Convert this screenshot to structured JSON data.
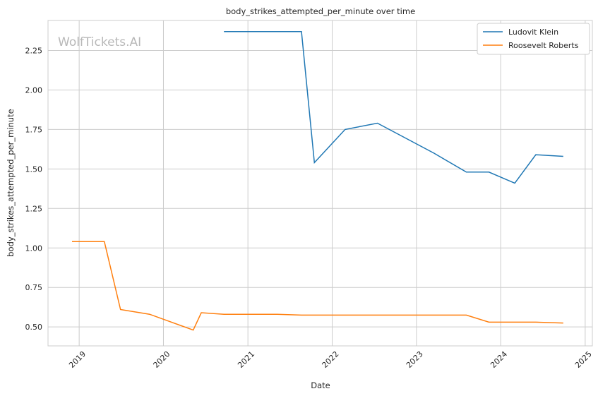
{
  "chart_data": {
    "type": "line",
    "title": "body_strikes_attempted_per_minute over time",
    "xlabel": "Date",
    "ylabel": "body_strikes_attempted_per_minute",
    "watermark": "WolfTickets.AI",
    "x_ticks": [
      "2019",
      "2020",
      "2021",
      "2022",
      "2023",
      "2024",
      "2025"
    ],
    "y_ticks": [
      "0.50",
      "0.75",
      "1.00",
      "1.25",
      "1.50",
      "1.75",
      "2.00",
      "2.25"
    ],
    "xlim": [
      "2018-08-19",
      "2025-02-01"
    ],
    "ylim": [
      0.38,
      2.44
    ],
    "grid": true,
    "legend_position": "top-right",
    "series": [
      {
        "name": "Ludovit Klein",
        "color": "#1f77b4",
        "points": [
          {
            "x": "2020-09-19",
            "y": 2.37
          },
          {
            "x": "2021-08-21",
            "y": 2.37
          },
          {
            "x": "2021-10-16",
            "y": 1.54
          },
          {
            "x": "2022-02-26",
            "y": 1.75
          },
          {
            "x": "2022-07-16",
            "y": 1.79
          },
          {
            "x": "2023-03-18",
            "y": 1.6
          },
          {
            "x": "2023-08-05",
            "y": 1.48
          },
          {
            "x": "2023-11-11",
            "y": 1.48
          },
          {
            "x": "2024-03-02",
            "y": 1.41
          },
          {
            "x": "2024-06-01",
            "y": 1.59
          },
          {
            "x": "2024-09-28",
            "y": 1.58
          }
        ]
      },
      {
        "name": "Roosevelt Roberts",
        "color": "#ff7f0e",
        "points": [
          {
            "x": "2018-12-01",
            "y": 1.04
          },
          {
            "x": "2019-04-20",
            "y": 1.04
          },
          {
            "x": "2019-06-29",
            "y": 0.61
          },
          {
            "x": "2019-11-02",
            "y": 0.58
          },
          {
            "x": "2020-05-09",
            "y": 0.48
          },
          {
            "x": "2020-06-13",
            "y": 0.59
          },
          {
            "x": "2020-09-19",
            "y": 0.58
          },
          {
            "x": "2021-05-08",
            "y": 0.58
          },
          {
            "x": "2021-08-21",
            "y": 0.575
          },
          {
            "x": "2023-08-05",
            "y": 0.575
          },
          {
            "x": "2023-11-11",
            "y": 0.53
          },
          {
            "x": "2024-06-01",
            "y": 0.53
          },
          {
            "x": "2024-09-28",
            "y": 0.525
          }
        ]
      }
    ]
  }
}
